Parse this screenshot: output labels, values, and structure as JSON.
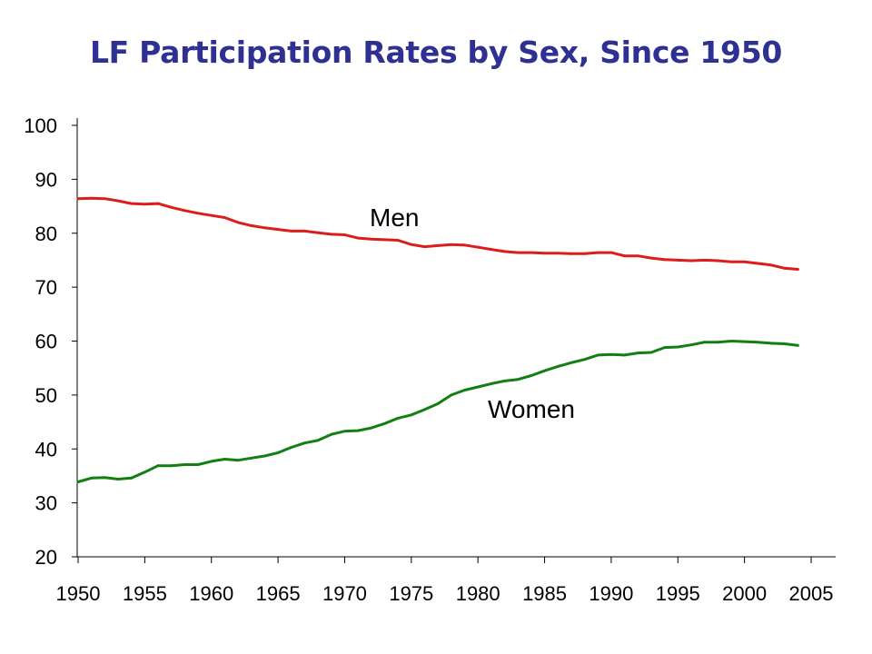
{
  "chart_data": {
    "type": "line",
    "title": "LF Participation Rates by Sex, Since 1950",
    "xlabel": "",
    "ylabel": "",
    "xlim": [
      1950,
      2005
    ],
    "ylim": [
      20,
      100
    ],
    "x_ticks": [
      1950,
      1955,
      1960,
      1965,
      1970,
      1975,
      1980,
      1985,
      1990,
      1995,
      2000,
      2005
    ],
    "y_ticks": [
      20,
      30,
      40,
      50,
      60,
      70,
      80,
      90,
      100
    ],
    "grid": false,
    "legend": "none",
    "x": [
      1950,
      1951,
      1952,
      1953,
      1954,
      1955,
      1956,
      1957,
      1958,
      1959,
      1960,
      1961,
      1962,
      1963,
      1964,
      1965,
      1966,
      1967,
      1968,
      1969,
      1970,
      1971,
      1972,
      1973,
      1974,
      1975,
      1976,
      1977,
      1978,
      1979,
      1980,
      1981,
      1982,
      1983,
      1984,
      1985,
      1986,
      1987,
      1988,
      1989,
      1990,
      1991,
      1992,
      1993,
      1994,
      1995,
      1996,
      1997,
      1998,
      1999,
      2000,
      2001,
      2002,
      2003,
      2004
    ],
    "series": [
      {
        "name": "Men",
        "color": "#dd1c1c",
        "values": [
          86.4,
          86.5,
          86.4,
          86.0,
          85.5,
          85.4,
          85.5,
          84.8,
          84.2,
          83.7,
          83.3,
          82.9,
          82.0,
          81.4,
          81.0,
          80.7,
          80.4,
          80.4,
          80.1,
          79.8,
          79.7,
          79.1,
          78.9,
          78.8,
          78.7,
          77.9,
          77.5,
          77.7,
          77.9,
          77.8,
          77.4,
          77.0,
          76.6,
          76.4,
          76.4,
          76.3,
          76.3,
          76.2,
          76.2,
          76.4,
          76.4,
          75.8,
          75.8,
          75.4,
          75.1,
          75.0,
          74.9,
          75.0,
          74.9,
          74.7,
          74.7,
          74.4,
          74.1,
          73.5,
          73.3
        ]
      },
      {
        "name": "Women",
        "color": "#137f13",
        "values": [
          33.9,
          34.6,
          34.7,
          34.4,
          34.6,
          35.7,
          36.9,
          36.9,
          37.1,
          37.1,
          37.7,
          38.1,
          37.9,
          38.3,
          38.7,
          39.3,
          40.3,
          41.1,
          41.6,
          42.7,
          43.3,
          43.4,
          43.9,
          44.7,
          45.7,
          46.3,
          47.3,
          48.4,
          50.0,
          50.9,
          51.5,
          52.1,
          52.6,
          52.9,
          53.6,
          54.5,
          55.3,
          56.0,
          56.6,
          57.4,
          57.5,
          57.4,
          57.8,
          57.9,
          58.8,
          58.9,
          59.3,
          59.8,
          59.8,
          60.0,
          59.9,
          59.8,
          59.6,
          59.5,
          59.2
        ]
      }
    ],
    "annotations": [
      "Men",
      "Women"
    ]
  }
}
